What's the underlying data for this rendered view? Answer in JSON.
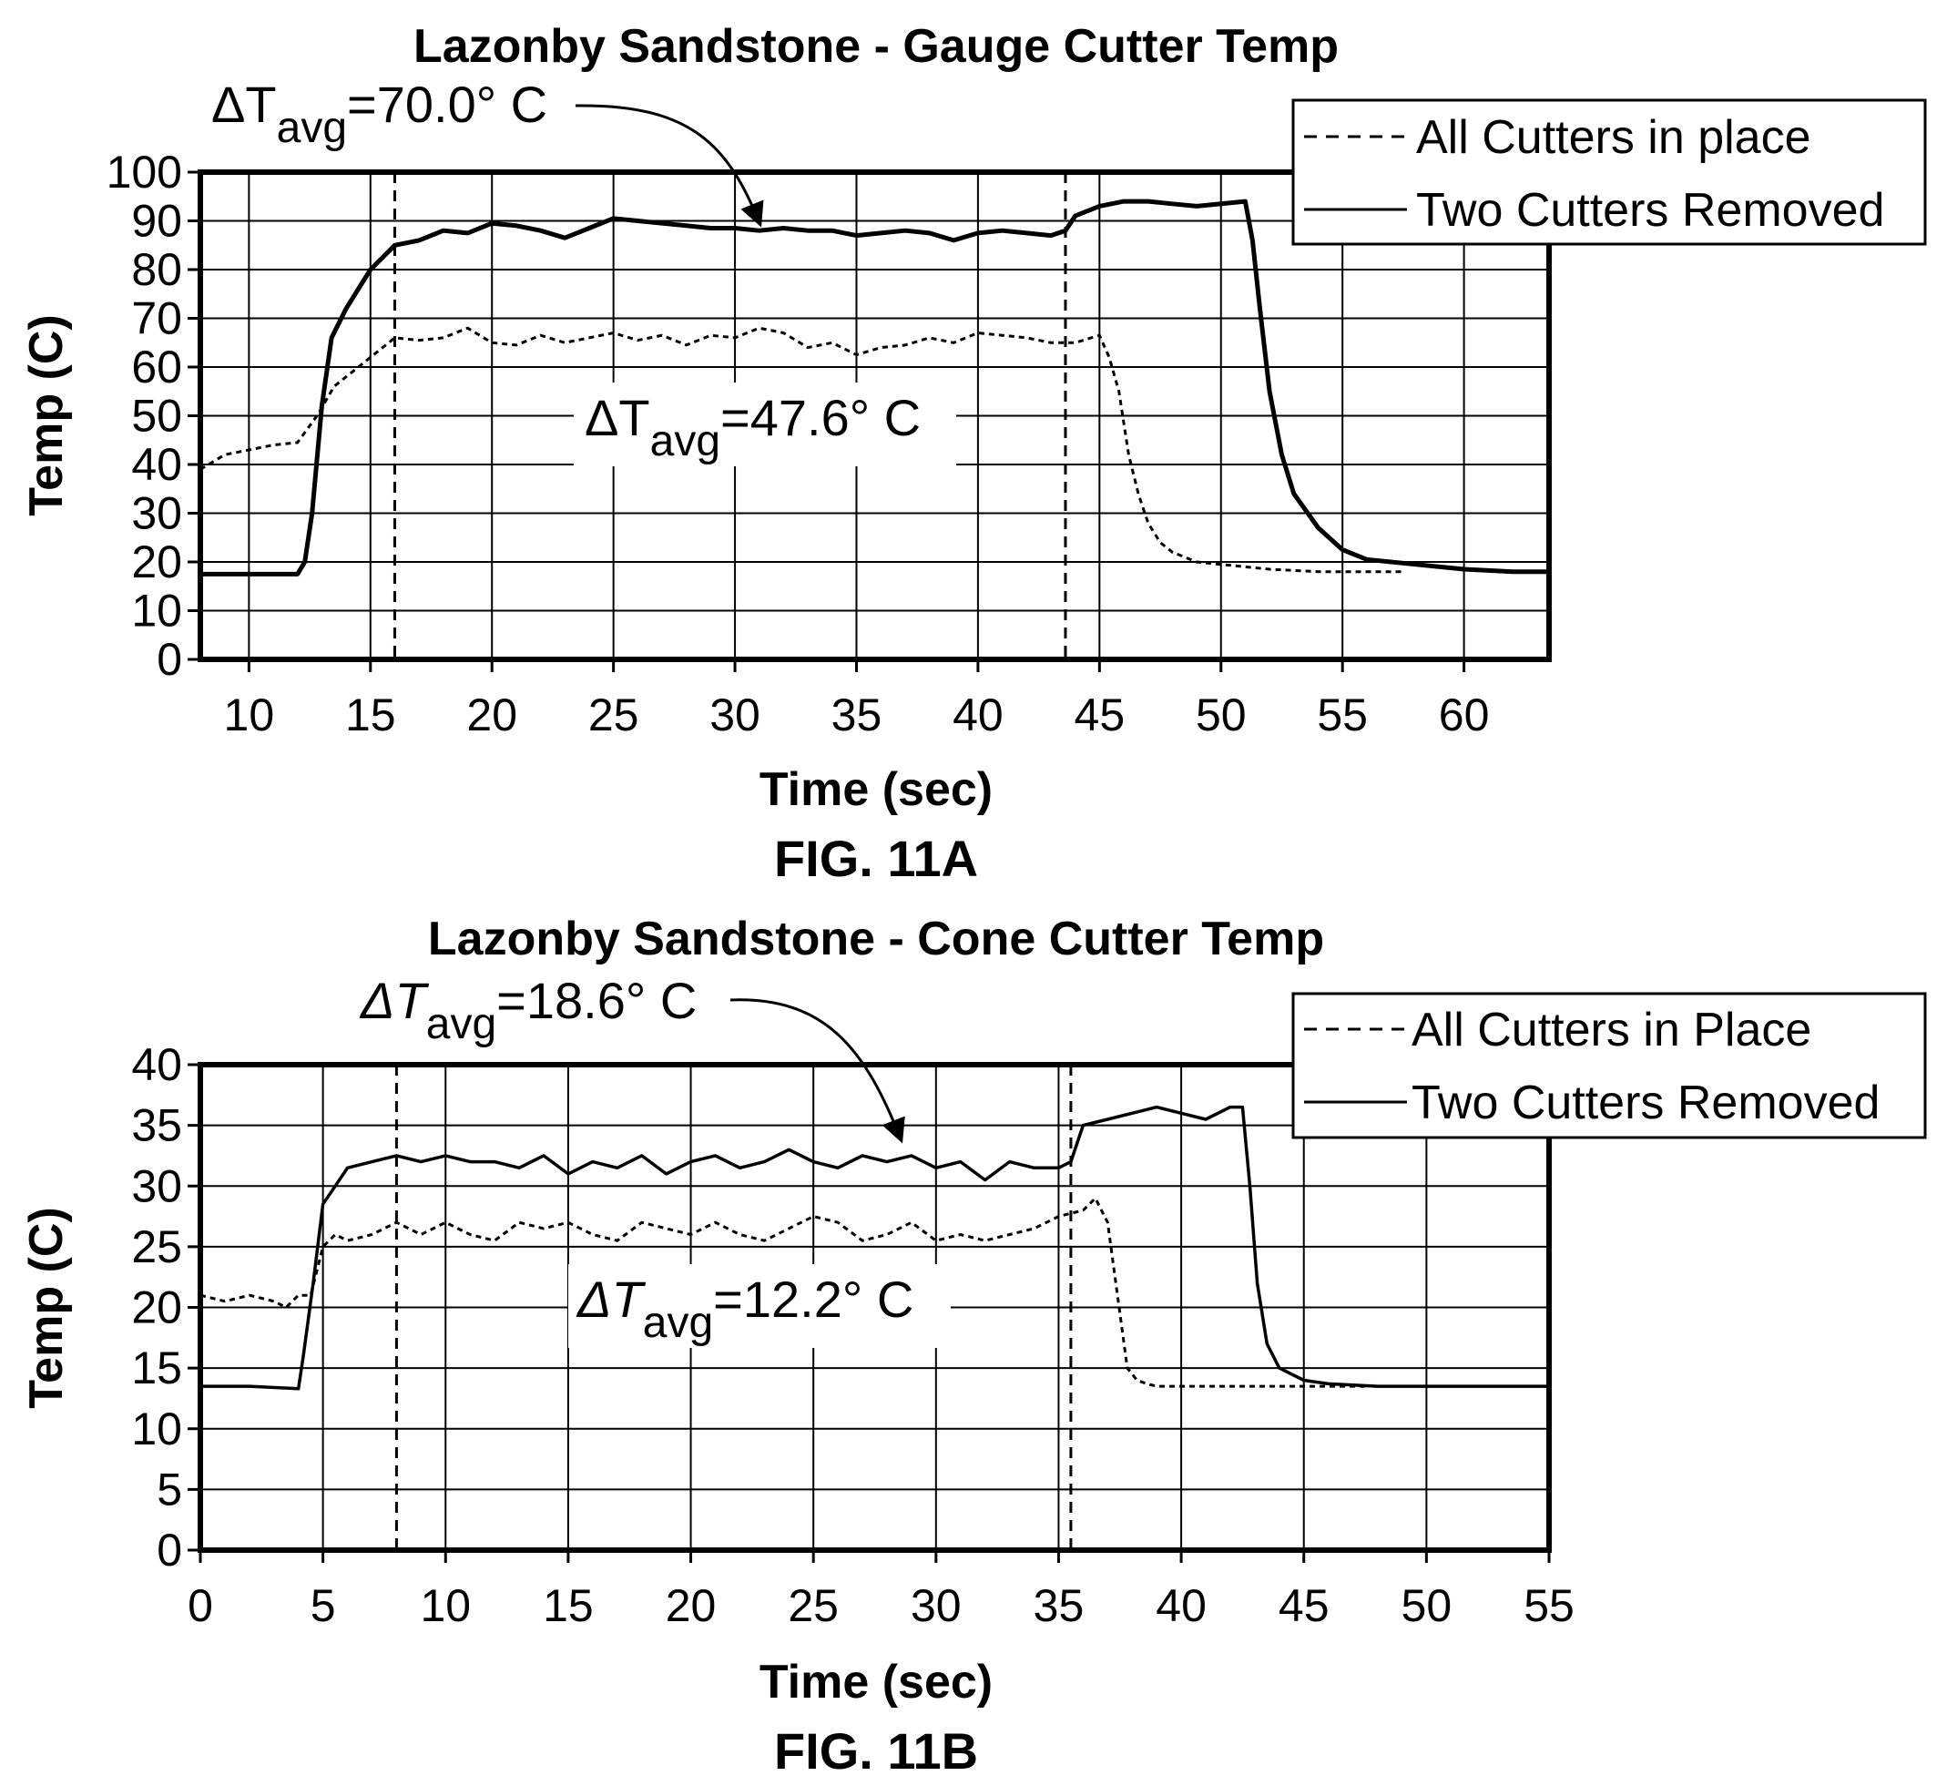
{
  "chart_data": [
    {
      "type": "line",
      "figure_label": "FIG. 11A",
      "title": "Lazonby Sandstone - Gauge Cutter Temp",
      "xlabel": "Time (sec)",
      "ylabel": "Temp (C)",
      "xlim": [
        8,
        63.5
      ],
      "ylim": [
        0,
        100
      ],
      "xticks": [
        10,
        15,
        20,
        25,
        30,
        35,
        40,
        45,
        50,
        55,
        60
      ],
      "yticks": [
        0,
        10,
        20,
        30,
        40,
        50,
        60,
        70,
        80,
        90,
        100
      ],
      "grid": true,
      "legend_position": "top-right",
      "vertical_markers": [
        16,
        43.6
      ],
      "series": [
        {
          "name": "All Cutters in place",
          "style": "dashed",
          "x": [
            8,
            9,
            10,
            11,
            12,
            12.8,
            13.5,
            14,
            14.5,
            15,
            16,
            17,
            18,
            19,
            20,
            21,
            22,
            23,
            24,
            25,
            26,
            27,
            28,
            29,
            30,
            31,
            32,
            33,
            34,
            35,
            36,
            37,
            38,
            39,
            40,
            41,
            42,
            43,
            44,
            45,
            45.4,
            45.8,
            46.2,
            46.6,
            47,
            47.5,
            48,
            49,
            50,
            52,
            54,
            56,
            57.5
          ],
          "y": [
            39,
            42,
            43,
            44,
            44.5,
            50,
            56,
            58,
            60,
            62,
            66,
            65.5,
            66,
            68,
            65,
            64.5,
            66.5,
            65,
            66,
            67,
            65.5,
            66.5,
            64.5,
            66.5,
            66,
            68,
            67,
            64,
            65,
            62.5,
            64,
            64.5,
            66,
            65,
            67,
            66.5,
            66,
            65,
            65,
            66.5,
            62,
            55,
            42,
            34,
            28,
            24,
            22,
            20,
            19.5,
            18.5,
            18,
            18,
            18
          ]
        },
        {
          "name": "Two Cutters Removed",
          "style": "solid",
          "x": [
            8,
            10,
            12,
            12.3,
            12.6,
            13,
            13.4,
            14,
            15,
            16,
            17,
            18,
            19,
            20,
            21,
            22,
            23,
            24,
            25,
            26,
            27,
            28,
            29,
            30,
            31,
            32,
            33,
            34,
            35,
            36,
            37,
            38,
            39,
            40,
            41,
            42,
            43,
            43.6,
            44,
            45,
            46,
            47,
            48,
            49,
            50,
            51,
            51.3,
            51.6,
            52,
            52.5,
            53,
            54,
            55,
            56,
            58,
            60,
            62,
            63.5
          ],
          "y": [
            17.5,
            17.5,
            17.5,
            20,
            30,
            52,
            66,
            72,
            80,
            85,
            86,
            88,
            87.5,
            89.5,
            89,
            88,
            86.5,
            88.5,
            90.5,
            90,
            89.5,
            89,
            88.5,
            88.5,
            88,
            88.5,
            88,
            88,
            87,
            87.5,
            88,
            87.5,
            86,
            87.5,
            88,
            87.5,
            87,
            88,
            91,
            93,
            94,
            94,
            93.5,
            93,
            93.5,
            94,
            86,
            72,
            55,
            42,
            34,
            27,
            22.5,
            20.5,
            19.5,
            18.5,
            18,
            18
          ]
        }
      ],
      "annotations": [
        {
          "delta": "ΔT",
          "subscript": "avg",
          "value": "=70.0° C",
          "target_x": 31,
          "target_y": 88
        },
        {
          "delta": "ΔT",
          "subscript": "avg",
          "value": "=47.6° C"
        }
      ]
    },
    {
      "type": "line",
      "figure_label": "FIG. 11B",
      "title": "Lazonby Sandstone - Cone Cutter Temp",
      "xlabel": "Time (sec)",
      "ylabel": "Temp (C)",
      "xlim": [
        0,
        55
      ],
      "ylim": [
        0,
        40
      ],
      "xticks": [
        0,
        5,
        10,
        15,
        20,
        25,
        30,
        35,
        40,
        45,
        50,
        55
      ],
      "yticks": [
        0,
        5,
        10,
        15,
        20,
        25,
        30,
        35,
        40
      ],
      "grid": true,
      "legend_position": "top-right",
      "vertical_markers": [
        8,
        35.5
      ],
      "series": [
        {
          "name": "All Cutters in Place",
          "style": "dashed",
          "x": [
            0,
            1,
            2,
            3,
            3.5,
            4,
            4.5,
            5,
            5.5,
            6,
            7,
            8,
            9,
            10,
            11,
            12,
            13,
            14,
            15,
            16,
            17,
            18,
            19,
            20,
            21,
            22,
            23,
            24,
            25,
            26,
            27,
            28,
            29,
            30,
            31,
            32,
            33,
            34,
            35,
            36,
            36.5,
            37,
            37.4,
            37.8,
            38.2,
            38.6,
            39,
            40,
            42,
            44,
            46,
            47.5
          ],
          "y": [
            21,
            20.5,
            21,
            20.5,
            20,
            21,
            21,
            25,
            26,
            25.5,
            26,
            27,
            26,
            27,
            26,
            25.5,
            27,
            26.5,
            27,
            26,
            25.5,
            27,
            26.5,
            26,
            27,
            26,
            25.5,
            26.5,
            27.5,
            27,
            25.5,
            26,
            27,
            25.5,
            26,
            25.5,
            26,
            26.5,
            27.5,
            28,
            29,
            27,
            21,
            15,
            14,
            13.7,
            13.5,
            13.5,
            13.5,
            13.5,
            13.5,
            13.5
          ]
        },
        {
          "name": "Two Cutters Removed",
          "style": "solid",
          "x": [
            0,
            2,
            4,
            4.2,
            4.6,
            5,
            5.5,
            6,
            7,
            8,
            9,
            10,
            11,
            12,
            13,
            14,
            15,
            16,
            17,
            18,
            19,
            20,
            21,
            22,
            23,
            24,
            25,
            26,
            27,
            28,
            29,
            30,
            31,
            32,
            33,
            34,
            35,
            35.5,
            36,
            37,
            38,
            39,
            40,
            41,
            42,
            42.5,
            42.8,
            43.1,
            43.5,
            44,
            45,
            46,
            48,
            50,
            53,
            55
          ],
          "y": [
            13.5,
            13.5,
            13.3,
            16,
            22,
            28.5,
            30,
            31.5,
            32,
            32.5,
            32,
            32.5,
            32,
            32,
            31.5,
            32.5,
            31,
            32,
            31.5,
            32.5,
            31,
            32,
            32.5,
            31.5,
            32,
            33,
            32,
            31.5,
            32.5,
            32,
            32.5,
            31.5,
            32,
            30.5,
            32,
            31.5,
            31.5,
            32,
            35,
            35.5,
            36,
            36.5,
            36,
            35.5,
            36.5,
            36.5,
            30,
            22,
            17,
            15,
            14,
            13.7,
            13.5,
            13.5,
            13.5,
            13.5
          ]
        }
      ],
      "annotations": [
        {
          "delta": "ΔT",
          "subscript": "avg",
          "value": "=18.6° C",
          "target_x": 28.5,
          "target_y": 33
        },
        {
          "delta": "ΔT",
          "subscript": "avg",
          "value": "=12.2° C"
        }
      ]
    }
  ]
}
